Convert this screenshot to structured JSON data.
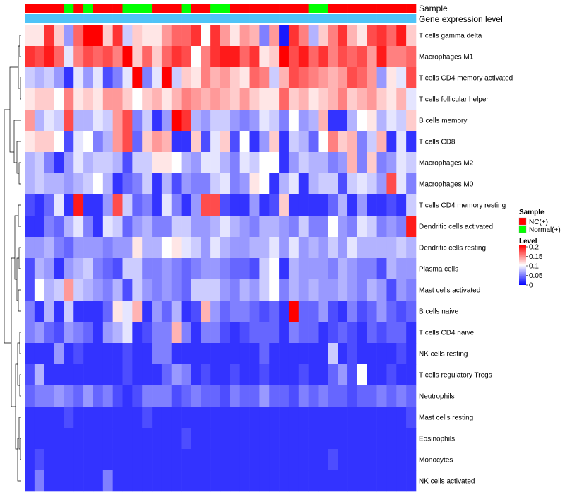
{
  "chart_data": {
    "type": "heatmap",
    "title": "",
    "rows": [
      "T cells gamma delta",
      "Macrophages M1",
      "T cells CD4 memory activated",
      "T cells follicular helper",
      "B cells memory",
      "T cells CD8",
      "Macrophages M2",
      "Macrophages M0",
      "T cells CD4 memory resting",
      "Dendritic cells activated",
      "Dendritic cells resting",
      "Plasma cells",
      "Mast cells activated",
      "B cells naive",
      "T cells CD4 naive",
      "NK cells resting",
      "T cells regulatory  Tregs",
      "Neutrophils",
      "Mast cells resting",
      "Eosinophils",
      "Monocytes",
      "NK cells activated"
    ],
    "column_groups": [
      "NC(+)",
      "NC(+)",
      "NC(+)",
      "NC(+)",
      "Normal(+)",
      "NC(+)",
      "Normal(+)",
      "NC(+)",
      "NC(+)",
      "NC(+)",
      "Normal(+)",
      "Normal(+)",
      "Normal(+)",
      "NC(+)",
      "NC(+)",
      "NC(+)",
      "Normal(+)",
      "NC(+)",
      "NC(+)",
      "Normal(+)",
      "Normal(+)",
      "NC(+)",
      "NC(+)",
      "NC(+)",
      "NC(+)",
      "NC(+)",
      "NC(+)",
      "NC(+)",
      "NC(+)",
      "Normal(+)",
      "Normal(+)",
      "NC(+)",
      "NC(+)",
      "NC(+)",
      "NC(+)",
      "NC(+)",
      "NC(+)",
      "NC(+)",
      "NC(+)",
      "NC(+)"
    ],
    "values": [
      [
        0.11,
        0.11,
        0.18,
        0.12,
        0.06,
        0.16,
        0.2,
        0.2,
        0.12,
        0.18,
        0.08,
        0.12,
        0.11,
        0.11,
        0.14,
        0.16,
        0.16,
        0.18,
        0.1,
        0.18,
        0.14,
        0.11,
        0.14,
        0.13,
        0.05,
        0.14,
        0.01,
        0.18,
        0.15,
        0.07,
        0.12,
        0.15,
        0.18,
        0.13,
        0.11,
        0.17,
        0.18,
        0.16,
        0.19,
        0.12
      ],
      [
        0.18,
        0.17,
        0.19,
        0.16,
        0.09,
        0.15,
        0.17,
        0.16,
        0.17,
        0.15,
        0.2,
        0.12,
        0.16,
        0.12,
        0.16,
        0.18,
        0.17,
        0.1,
        0.15,
        0.18,
        0.19,
        0.19,
        0.16,
        0.18,
        0.11,
        0.12,
        0.2,
        0.17,
        0.19,
        0.16,
        0.18,
        0.15,
        0.17,
        0.16,
        0.17,
        0.14,
        0.19,
        0.15,
        0.15,
        0.16
      ],
      [
        0.08,
        0.07,
        0.08,
        0.06,
        0.02,
        0.09,
        0.06,
        0.09,
        0.03,
        0.05,
        0.09,
        0.2,
        0.05,
        0.09,
        0.2,
        0.08,
        0.12,
        0.11,
        0.15,
        0.13,
        0.14,
        0.12,
        0.11,
        0.16,
        0.15,
        0.08,
        0.13,
        0.17,
        0.16,
        0.15,
        0.14,
        0.13,
        0.14,
        0.17,
        0.16,
        0.14,
        0.06,
        0.11,
        0.09,
        0.17
      ],
      [
        0.11,
        0.12,
        0.12,
        0.1,
        0.15,
        0.11,
        0.12,
        0.11,
        0.14,
        0.14,
        0.12,
        0.1,
        0.12,
        0.13,
        0.11,
        0.13,
        0.15,
        0.14,
        0.13,
        0.14,
        0.13,
        0.12,
        0.14,
        0.12,
        0.11,
        0.11,
        0.16,
        0.12,
        0.13,
        0.11,
        0.12,
        0.13,
        0.15,
        0.12,
        0.13,
        0.14,
        0.12,
        0.11,
        0.13,
        0.09
      ],
      [
        0.14,
        0.07,
        0.09,
        0.08,
        0.17,
        0.07,
        0.07,
        0.09,
        0.08,
        0.14,
        0.17,
        0.05,
        0.08,
        0.02,
        0.06,
        0.2,
        0.18,
        0.07,
        0.06,
        0.08,
        0.08,
        0.06,
        0.05,
        0.06,
        0.09,
        0.08,
        0.05,
        0.1,
        0.06,
        0.07,
        0.13,
        0.02,
        0.02,
        0.07,
        0.1,
        0.11,
        0.07,
        0.09,
        0.08,
        0.12
      ],
      [
        0.11,
        0.12,
        0.12,
        0.1,
        0.03,
        0.09,
        0.1,
        0.05,
        0.07,
        0.14,
        0.17,
        0.04,
        0.12,
        0.14,
        0.13,
        0.02,
        0.02,
        0.12,
        0.03,
        0.09,
        0.12,
        0.03,
        0.1,
        0.02,
        0.06,
        0.12,
        0.02,
        0.08,
        0.07,
        0.04,
        0.1,
        0.15,
        0.12,
        0.13,
        0.05,
        0.08,
        0.13,
        0.02,
        0.09,
        0.02
      ],
      [
        0.07,
        0.08,
        0.05,
        0.02,
        0.06,
        0.09,
        0.07,
        0.08,
        0.08,
        0.07,
        0.03,
        0.08,
        0.08,
        0.11,
        0.11,
        0.1,
        0.07,
        0.06,
        0.09,
        0.09,
        0.07,
        0.05,
        0.09,
        0.08,
        0.1,
        0.1,
        0.02,
        0.06,
        0.08,
        0.07,
        0.07,
        0.05,
        0.06,
        0.13,
        0.05,
        0.12,
        0.05,
        0.06,
        0.09,
        0.08
      ],
      [
        0.07,
        0.08,
        0.07,
        0.07,
        0.06,
        0.07,
        0.08,
        0.1,
        0.07,
        0.02,
        0.04,
        0.05,
        0.08,
        0.02,
        0.07,
        0.03,
        0.06,
        0.05,
        0.05,
        0.08,
        0.09,
        0.05,
        0.06,
        0.11,
        0.1,
        0.02,
        0.07,
        0.09,
        0.02,
        0.07,
        0.08,
        0.08,
        0.03,
        0.08,
        0.09,
        0.08,
        0.06,
        0.17,
        0.09,
        0.05
      ],
      [
        0.03,
        0.02,
        0.04,
        0.09,
        0.02,
        0.19,
        0.02,
        0.02,
        0.06,
        0.17,
        0.08,
        0.04,
        0.05,
        0.02,
        0.09,
        0.05,
        0.02,
        0.06,
        0.17,
        0.17,
        0.03,
        0.02,
        0.02,
        0.06,
        0.02,
        0.03,
        0.12,
        0.02,
        0.02,
        0.02,
        0.02,
        0.04,
        0.07,
        0.02,
        0.06,
        0.02,
        0.02,
        0.03,
        0.02,
        0.08
      ],
      [
        0.02,
        0.02,
        0.05,
        0.04,
        0.07,
        0.09,
        0.05,
        0.02,
        0.09,
        0.08,
        0.04,
        0.06,
        0.07,
        0.05,
        0.05,
        0.08,
        0.08,
        0.06,
        0.06,
        0.07,
        0.09,
        0.07,
        0.06,
        0.05,
        0.07,
        0.07,
        0.06,
        0.05,
        0.08,
        0.05,
        0.05,
        0.1,
        0.06,
        0.05,
        0.09,
        0.08,
        0.05,
        0.06,
        0.05,
        0.19
      ],
      [
        0.06,
        0.06,
        0.07,
        0.05,
        0.04,
        0.06,
        0.06,
        0.06,
        0.05,
        0.06,
        0.06,
        0.11,
        0.07,
        0.07,
        0.1,
        0.11,
        0.09,
        0.08,
        0.06,
        0.09,
        0.07,
        0.06,
        0.06,
        0.07,
        0.07,
        0.09,
        0.06,
        0.09,
        0.06,
        0.07,
        0.06,
        0.08,
        0.06,
        0.09,
        0.07,
        0.07,
        0.07,
        0.07,
        0.08,
        0.07
      ],
      [
        0.03,
        0.07,
        0.06,
        0.02,
        0.06,
        0.07,
        0.08,
        0.05,
        0.04,
        0.03,
        0.08,
        0.08,
        0.05,
        0.05,
        0.06,
        0.05,
        0.04,
        0.05,
        0.06,
        0.06,
        0.05,
        0.04,
        0.04,
        0.03,
        0.08,
        0.1,
        0.02,
        0.07,
        0.06,
        0.06,
        0.06,
        0.05,
        0.07,
        0.06,
        0.05,
        0.05,
        0.03,
        0.07,
        0.06,
        0.06
      ],
      [
        0.03,
        0.1,
        0.07,
        0.08,
        0.14,
        0.08,
        0.07,
        0.06,
        0.05,
        0.07,
        0.03,
        0.08,
        0.06,
        0.05,
        0.06,
        0.05,
        0.04,
        0.08,
        0.08,
        0.08,
        0.06,
        0.05,
        0.07,
        0.06,
        0.08,
        0.1,
        0.05,
        0.07,
        0.06,
        0.07,
        0.06,
        0.06,
        0.07,
        0.06,
        0.05,
        0.07,
        0.06,
        0.03,
        0.06,
        0.05
      ],
      [
        0.05,
        0.02,
        0.07,
        0.02,
        0.08,
        0.02,
        0.02,
        0.02,
        0.04,
        0.11,
        0.09,
        0.13,
        0.02,
        0.06,
        0.04,
        0.07,
        0.02,
        0.03,
        0.13,
        0.06,
        0.04,
        0.05,
        0.05,
        0.04,
        0.03,
        0.04,
        0.02,
        0.2,
        0.04,
        0.04,
        0.06,
        0.03,
        0.02,
        0.05,
        0.03,
        0.04,
        0.06,
        0.04,
        0.03,
        0.04
      ],
      [
        0.05,
        0.06,
        0.04,
        0.03,
        0.06,
        0.05,
        0.04,
        0.02,
        0.06,
        0.07,
        0.09,
        0.02,
        0.03,
        0.05,
        0.05,
        0.13,
        0.05,
        0.02,
        0.05,
        0.05,
        0.03,
        0.02,
        0.03,
        0.04,
        0.04,
        0.04,
        0.02,
        0.05,
        0.04,
        0.04,
        0.02,
        0.03,
        0.04,
        0.03,
        0.02,
        0.04,
        0.03,
        0.04,
        0.04,
        0.02
      ],
      [
        0.02,
        0.02,
        0.02,
        0.06,
        0.02,
        0.03,
        0.02,
        0.02,
        0.02,
        0.02,
        0.03,
        0.02,
        0.02,
        0.05,
        0.05,
        0.02,
        0.02,
        0.02,
        0.02,
        0.02,
        0.02,
        0.02,
        0.02,
        0.02,
        0.04,
        0.02,
        0.02,
        0.02,
        0.02,
        0.02,
        0.02,
        0.08,
        0.02,
        0.03,
        0.02,
        0.02,
        0.02,
        0.02,
        0.03,
        0.02
      ],
      [
        0.03,
        0.07,
        0.02,
        0.02,
        0.02,
        0.02,
        0.02,
        0.02,
        0.02,
        0.02,
        0.03,
        0.02,
        0.02,
        0.02,
        0.04,
        0.06,
        0.05,
        0.02,
        0.03,
        0.02,
        0.02,
        0.03,
        0.02,
        0.02,
        0.03,
        0.02,
        0.02,
        0.02,
        0.03,
        0.02,
        0.02,
        0.04,
        0.06,
        0.03,
        0.1,
        0.02,
        0.02,
        0.03,
        0.02,
        0.02
      ],
      [
        0.04,
        0.05,
        0.05,
        0.06,
        0.05,
        0.04,
        0.06,
        0.04,
        0.05,
        0.03,
        0.02,
        0.03,
        0.05,
        0.05,
        0.05,
        0.03,
        0.04,
        0.05,
        0.04,
        0.04,
        0.03,
        0.05,
        0.04,
        0.04,
        0.06,
        0.04,
        0.04,
        0.03,
        0.05,
        0.04,
        0.05,
        0.04,
        0.04,
        0.03,
        0.04,
        0.04,
        0.05,
        0.04,
        0.05,
        0.04
      ],
      [
        0.02,
        0.02,
        0.02,
        0.02,
        0.03,
        0.02,
        0.02,
        0.02,
        0.02,
        0.02,
        0.02,
        0.02,
        0.03,
        0.02,
        0.02,
        0.02,
        0.02,
        0.02,
        0.02,
        0.02,
        0.02,
        0.02,
        0.02,
        0.02,
        0.02,
        0.02,
        0.02,
        0.02,
        0.02,
        0.02,
        0.02,
        0.02,
        0.02,
        0.02,
        0.02,
        0.02,
        0.02,
        0.02,
        0.02,
        0.03
      ],
      [
        0.02,
        0.02,
        0.02,
        0.02,
        0.02,
        0.02,
        0.02,
        0.02,
        0.02,
        0.02,
        0.02,
        0.02,
        0.02,
        0.02,
        0.02,
        0.02,
        0.03,
        0.02,
        0.02,
        0.02,
        0.02,
        0.02,
        0.02,
        0.02,
        0.02,
        0.02,
        0.02,
        0.02,
        0.02,
        0.02,
        0.02,
        0.02,
        0.02,
        0.02,
        0.02,
        0.02,
        0.02,
        0.02,
        0.02,
        0.02
      ],
      [
        0.02,
        0.03,
        0.02,
        0.02,
        0.02,
        0.02,
        0.02,
        0.02,
        0.02,
        0.02,
        0.02,
        0.02,
        0.02,
        0.02,
        0.02,
        0.02,
        0.02,
        0.02,
        0.02,
        0.02,
        0.02,
        0.02,
        0.02,
        0.02,
        0.02,
        0.02,
        0.02,
        0.02,
        0.02,
        0.02,
        0.02,
        0.03,
        0.02,
        0.02,
        0.02,
        0.02,
        0.02,
        0.02,
        0.02,
        0.02
      ],
      [
        0.02,
        0.05,
        0.02,
        0.02,
        0.02,
        0.02,
        0.02,
        0.02,
        0.05,
        0.02,
        0.02,
        0.02,
        0.02,
        0.02,
        0.02,
        0.02,
        0.02,
        0.02,
        0.02,
        0.02,
        0.02,
        0.02,
        0.02,
        0.02,
        0.02,
        0.02,
        0.02,
        0.02,
        0.02,
        0.02,
        0.02,
        0.02,
        0.02,
        0.02,
        0.02,
        0.02,
        0.02,
        0.02,
        0.02,
        0.02
      ]
    ],
    "annotations": {
      "sample_label": "Sample",
      "level_label": "Gene expression level"
    },
    "legend": {
      "sample_title": "Sample",
      "groups": [
        {
          "name": "NC(+)",
          "color": "#ff0000"
        },
        {
          "name": "Normal(+)",
          "color": "#00ff00"
        }
      ],
      "level_title": "Level",
      "ticks": [
        "0.2",
        "0.15",
        "0.1",
        "0.05",
        "0"
      ],
      "tick_values": [
        0.2,
        0.15,
        0.1,
        0.05,
        0.0
      ],
      "placement": "right"
    },
    "color_scale": {
      "low": "#0000ff",
      "mid": "#ffffff",
      "high": "#ff0000",
      "min": 0,
      "mid_value": 0.1,
      "max": 0.2
    },
    "level_bar_color": "#4fc3f7"
  }
}
